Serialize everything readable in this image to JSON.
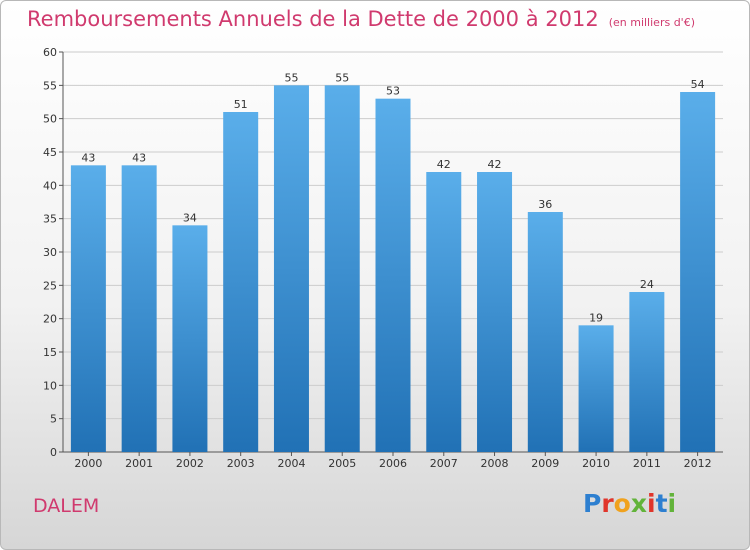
{
  "title": "Remboursements Annuels de la Dette de 2000 à 2012",
  "title_unit": "(en milliers d'€)",
  "commune": "DALEM",
  "logo": {
    "text": "Proxiti",
    "letter_colors": [
      "#2d7fd0",
      "#e0352b",
      "#f0a21e",
      "#62b33a",
      "#e0352b",
      "#2d7fd0",
      "#62b33a"
    ]
  },
  "colors": {
    "title": "#d03a6e",
    "bar_top": "#5aaeea",
    "bar_bottom": "#2171b5",
    "grid": "#cccccc"
  },
  "chart_data": {
    "type": "bar",
    "title": "Remboursements Annuels de la Dette de 2000 à 2012",
    "categories": [
      "2000",
      "2001",
      "2002",
      "2003",
      "2004",
      "2005",
      "2006",
      "2007",
      "2008",
      "2009",
      "2010",
      "2011",
      "2012"
    ],
    "values": [
      43,
      43,
      34,
      51,
      55,
      55,
      53,
      42,
      42,
      36,
      19,
      24,
      54
    ],
    "ylim": [
      0,
      60
    ],
    "yticks": [
      0,
      5,
      10,
      15,
      20,
      25,
      30,
      35,
      40,
      45,
      50,
      55,
      60
    ],
    "grid": true,
    "data_labels": true
  }
}
